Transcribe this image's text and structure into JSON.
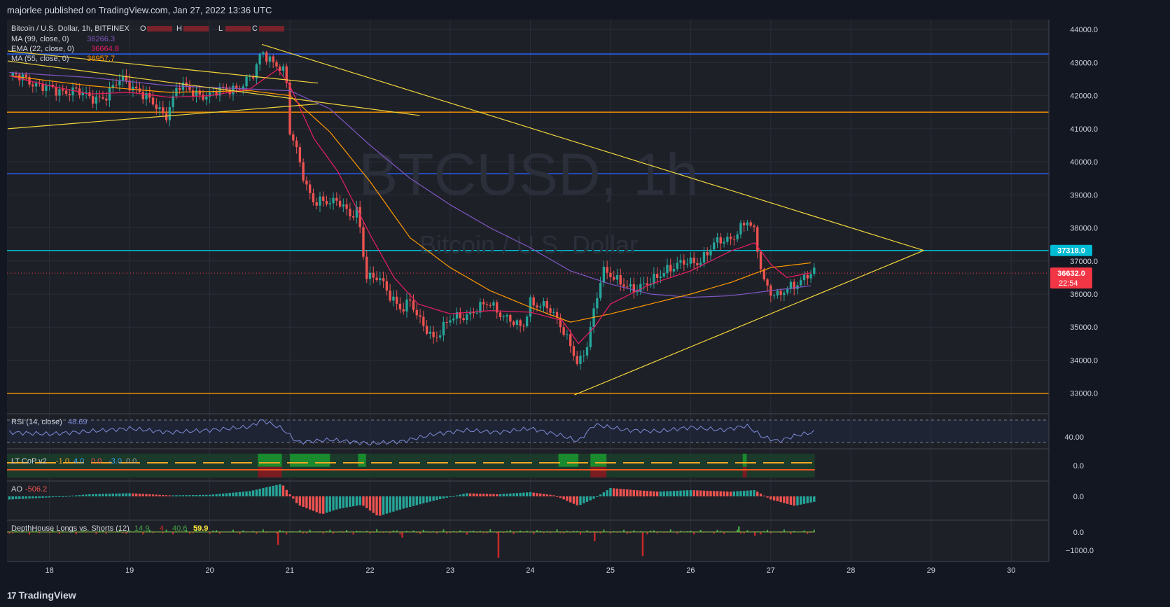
{
  "header": {
    "published": "majorlee published on TradingView.com, Jan 27, 2022 13:36 UTC"
  },
  "footer": {
    "brand": "TradingView"
  },
  "main_pane": {
    "title": "Bitcoin / U.S. Dollar, 1h, BITFINEX",
    "ohlc_labels": [
      "O",
      "H",
      "L",
      "C"
    ],
    "watermark_symbol": "BTCUSD, 1h",
    "watermark_name": "Bitcoin / U.S. Dollar",
    "indicators": [
      {
        "label": "MA (99, close, 0)",
        "value": "36266.3",
        "color": "#7e57c2"
      },
      {
        "label": "EMA (22, close, 0)",
        "value": "36664.8",
        "color": "#e91e63"
      },
      {
        "label": "MA (55, close, 0)",
        "value": "36957.7",
        "color": "#ff9800"
      }
    ],
    "price_badges": [
      {
        "text": "37318.0",
        "price": 37318,
        "color": "#00bcd4"
      },
      {
        "text": "36632.0",
        "sub": "22:54",
        "price": 36632,
        "color": "#f23645"
      }
    ]
  },
  "panes": {
    "rsi": {
      "label": "RSI (14, close)",
      "value": "48.69",
      "ticks": [
        "40.00"
      ]
    },
    "ltcop": {
      "label": "LT CoP v2",
      "values": [
        "-1.0",
        "4.0",
        "0.0",
        "-3.0",
        "0.0"
      ],
      "ticks": [
        "0.0"
      ]
    },
    "ao": {
      "label": "AO",
      "value": "-506.2",
      "ticks": [
        "0.0"
      ]
    },
    "depth": {
      "label": "DepthHouse Longs vs. Shorts (12)",
      "values": [
        "14.9",
        "4",
        "40.6",
        "59.9"
      ],
      "ticks": [
        "0.0",
        "−1000.0"
      ]
    }
  },
  "colors": {
    "up": "#26a69a",
    "down": "#ef5350",
    "blue_line": "#2962ff",
    "cyan_line": "#00bcd4",
    "orange_line": "#ff9800",
    "yellow": "#f0d43a",
    "grid": "#2a2e39"
  },
  "chart_data": {
    "type": "candlestick",
    "symbol": "Bitcoin / U.S. Dollar",
    "interval": "1h",
    "exchange": "BITFINEX",
    "y_ticks": [
      "44000.0",
      "43000.0",
      "42000.0",
      "41000.0",
      "40000.0",
      "39000.0",
      "38000.0",
      "37000.0",
      "36000.0",
      "35000.0",
      "34000.0",
      "33000.0"
    ],
    "ylim": [
      32400,
      44300
    ],
    "x_ticks": [
      "18",
      "19",
      "20",
      "21",
      "22",
      "23",
      "24",
      "25",
      "26",
      "27",
      "28",
      "29",
      "30"
    ],
    "x_tick_day": [
      18,
      19,
      20,
      21,
      22,
      23,
      24,
      25,
      26,
      27,
      28,
      29,
      30
    ],
    "xlim_day": [
      17.47,
      30.47
    ],
    "horizontal_levels": [
      {
        "price": 43260,
        "color": "#2962ff"
      },
      {
        "price": 41500,
        "color": "#ff9800"
      },
      {
        "price": 39640,
        "color": "#2962ff"
      },
      {
        "price": 37318,
        "color": "#00bcd4"
      },
      {
        "price": 33000,
        "color": "#ff9800"
      }
    ],
    "trendlines": [
      {
        "from": [
          20.65,
          43550
        ],
        "to": [
          28.91,
          37318
        ]
      },
      {
        "from": [
          24.55,
          32950
        ],
        "to": [
          28.91,
          37318
        ]
      },
      {
        "from": [
          17.48,
          43350
        ],
        "to": [
          21.35,
          42380
        ]
      },
      {
        "from": [
          17.48,
          43050
        ],
        "to": [
          22.62,
          41400
        ]
      },
      {
        "from": [
          17.48,
          41000
        ],
        "to": [
          21.35,
          41750
        ]
      }
    ],
    "close_path": [
      [
        17.5,
        42600
      ],
      [
        17.7,
        42500
      ],
      [
        17.9,
        42300
      ],
      [
        18.1,
        42100
      ],
      [
        18.3,
        42200
      ],
      [
        18.5,
        41900
      ],
      [
        18.7,
        42000
      ],
      [
        18.9,
        42500
      ],
      [
        19.1,
        42200
      ],
      [
        19.3,
        41700
      ],
      [
        19.45,
        41400
      ],
      [
        19.6,
        42300
      ],
      [
        19.8,
        42100
      ],
      [
        20.0,
        42000
      ],
      [
        20.2,
        42200
      ],
      [
        20.4,
        42300
      ],
      [
        20.55,
        42600
      ],
      [
        20.65,
        43400
      ],
      [
        20.8,
        43000
      ],
      [
        20.95,
        42600
      ],
      [
        21.0,
        40900
      ],
      [
        21.1,
        40300
      ],
      [
        21.2,
        39300
      ],
      [
        21.3,
        38700
      ],
      [
        21.45,
        38800
      ],
      [
        21.6,
        38900
      ],
      [
        21.75,
        38300
      ],
      [
        21.85,
        38500
      ],
      [
        21.95,
        36600
      ],
      [
        22.1,
        36500
      ],
      [
        22.25,
        35900
      ],
      [
        22.4,
        35600
      ],
      [
        22.5,
        35800
      ],
      [
        22.6,
        35200
      ],
      [
        22.8,
        34700
      ],
      [
        23.0,
        35200
      ],
      [
        23.2,
        35400
      ],
      [
        23.4,
        35600
      ],
      [
        23.5,
        35700
      ],
      [
        23.7,
        35300
      ],
      [
        23.9,
        34900
      ],
      [
        24.0,
        35800
      ],
      [
        24.2,
        35600
      ],
      [
        24.4,
        35000
      ],
      [
        24.5,
        34500
      ],
      [
        24.6,
        33800
      ],
      [
        24.7,
        34300
      ],
      [
        24.8,
        35600
      ],
      [
        24.9,
        36800
      ],
      [
        25.1,
        36300
      ],
      [
        25.3,
        36200
      ],
      [
        25.5,
        36300
      ],
      [
        25.7,
        36800
      ],
      [
        25.9,
        36900
      ],
      [
        26.1,
        37000
      ],
      [
        26.3,
        37500
      ],
      [
        26.5,
        37700
      ],
      [
        26.7,
        38200
      ],
      [
        26.8,
        37800
      ],
      [
        26.9,
        36500
      ],
      [
        27.0,
        36100
      ],
      [
        27.1,
        35900
      ],
      [
        27.3,
        36300
      ],
      [
        27.45,
        36600
      ],
      [
        27.55,
        36632
      ]
    ],
    "sma99": [
      [
        17.5,
        42700
      ],
      [
        18.5,
        42550
      ],
      [
        19.5,
        42300
      ],
      [
        20.5,
        42200
      ],
      [
        21.0,
        42150
      ],
      [
        21.5,
        41600
      ],
      [
        22.0,
        40500
      ],
      [
        22.5,
        39500
      ],
      [
        23.0,
        38700
      ],
      [
        23.5,
        38000
      ],
      [
        24.0,
        37400
      ],
      [
        24.5,
        36700
      ],
      [
        25.0,
        36300
      ],
      [
        25.5,
        36000
      ],
      [
        26.0,
        35900
      ],
      [
        26.5,
        35950
      ],
      [
        27.0,
        36100
      ],
      [
        27.55,
        36266
      ]
    ],
    "ema22": [
      [
        17.5,
        42600
      ],
      [
        18.0,
        42300
      ],
      [
        18.5,
        42050
      ],
      [
        19.0,
        42100
      ],
      [
        19.5,
        41950
      ],
      [
        20.0,
        42000
      ],
      [
        20.5,
        42200
      ],
      [
        20.85,
        42800
      ],
      [
        21.0,
        42300
      ],
      [
        21.3,
        40700
      ],
      [
        21.6,
        39700
      ],
      [
        22.0,
        37800
      ],
      [
        22.3,
        36500
      ],
      [
        22.6,
        35700
      ],
      [
        23.0,
        35400
      ],
      [
        23.5,
        35500
      ],
      [
        24.0,
        35450
      ],
      [
        24.4,
        35200
      ],
      [
        24.6,
        34500
      ],
      [
        24.8,
        35000
      ],
      [
        25.0,
        35700
      ],
      [
        25.5,
        36300
      ],
      [
        26.0,
        36700
      ],
      [
        26.5,
        37300
      ],
      [
        26.8,
        37550
      ],
      [
        27.0,
        36900
      ],
      [
        27.2,
        36500
      ],
      [
        27.55,
        36665
      ]
    ],
    "ma55": [
      [
        17.5,
        42600
      ],
      [
        18.5,
        42300
      ],
      [
        19.5,
        42100
      ],
      [
        20.5,
        42150
      ],
      [
        21.0,
        42000
      ],
      [
        21.5,
        40900
      ],
      [
        22.0,
        39400
      ],
      [
        22.5,
        37700
      ],
      [
        23.0,
        36800
      ],
      [
        23.5,
        36100
      ],
      [
        24.0,
        35600
      ],
      [
        24.5,
        35150
      ],
      [
        25.0,
        35400
      ],
      [
        25.5,
        35700
      ],
      [
        26.0,
        36000
      ],
      [
        26.5,
        36350
      ],
      [
        27.0,
        36800
      ],
      [
        27.55,
        36958
      ]
    ],
    "rsi": [
      [
        17.5,
        48
      ],
      [
        18.0,
        45
      ],
      [
        18.5,
        50
      ],
      [
        19.0,
        55
      ],
      [
        19.5,
        48
      ],
      [
        20.0,
        52
      ],
      [
        20.5,
        58
      ],
      [
        20.65,
        70
      ],
      [
        20.9,
        55
      ],
      [
        21.1,
        30
      ],
      [
        21.5,
        35
      ],
      [
        22.0,
        28
      ],
      [
        22.4,
        32
      ],
      [
        22.8,
        45
      ],
      [
        23.2,
        52
      ],
      [
        23.6,
        48
      ],
      [
        24.0,
        55
      ],
      [
        24.4,
        42
      ],
      [
        24.6,
        32
      ],
      [
        24.8,
        62
      ],
      [
        25.2,
        52
      ],
      [
        25.6,
        50
      ],
      [
        26.0,
        57
      ],
      [
        26.4,
        52
      ],
      [
        26.7,
        60
      ],
      [
        26.9,
        40
      ],
      [
        27.1,
        32
      ],
      [
        27.3,
        42
      ],
      [
        27.55,
        48.69
      ]
    ],
    "rsi_ylim": [
      20,
      80
    ],
    "ao": [
      [
        17.5,
        -300
      ],
      [
        18.0,
        -100
      ],
      [
        18.5,
        200
      ],
      [
        19.0,
        300
      ],
      [
        19.5,
        100
      ],
      [
        20.0,
        150
      ],
      [
        20.5,
        500
      ],
      [
        20.9,
        1200
      ],
      [
        21.1,
        -800
      ],
      [
        21.4,
        -1700
      ],
      [
        21.6,
        -1200
      ],
      [
        21.9,
        -800
      ],
      [
        22.1,
        -1900
      ],
      [
        22.4,
        -1200
      ],
      [
        22.8,
        -400
      ],
      [
        23.2,
        300
      ],
      [
        23.6,
        200
      ],
      [
        24.0,
        400
      ],
      [
        24.3,
        100
      ],
      [
        24.6,
        -900
      ],
      [
        24.8,
        -200
      ],
      [
        25.0,
        800
      ],
      [
        25.3,
        600
      ],
      [
        25.6,
        450
      ],
      [
        26.0,
        600
      ],
      [
        26.5,
        450
      ],
      [
        26.8,
        600
      ],
      [
        27.0,
        -300
      ],
      [
        27.3,
        -900
      ],
      [
        27.55,
        -506.2
      ]
    ],
    "ao_ylim": [
      -2200,
      1400
    ],
    "depth_spikes": [
      [
        20.85,
        -700
      ],
      [
        22.4,
        -300
      ],
      [
        23.6,
        -1400
      ],
      [
        24.8,
        -500
      ],
      [
        25.4,
        -1300
      ],
      [
        26.6,
        300
      ],
      [
        26.8,
        -200
      ]
    ],
    "depth_ylim": [
      -1600,
      600
    ]
  }
}
